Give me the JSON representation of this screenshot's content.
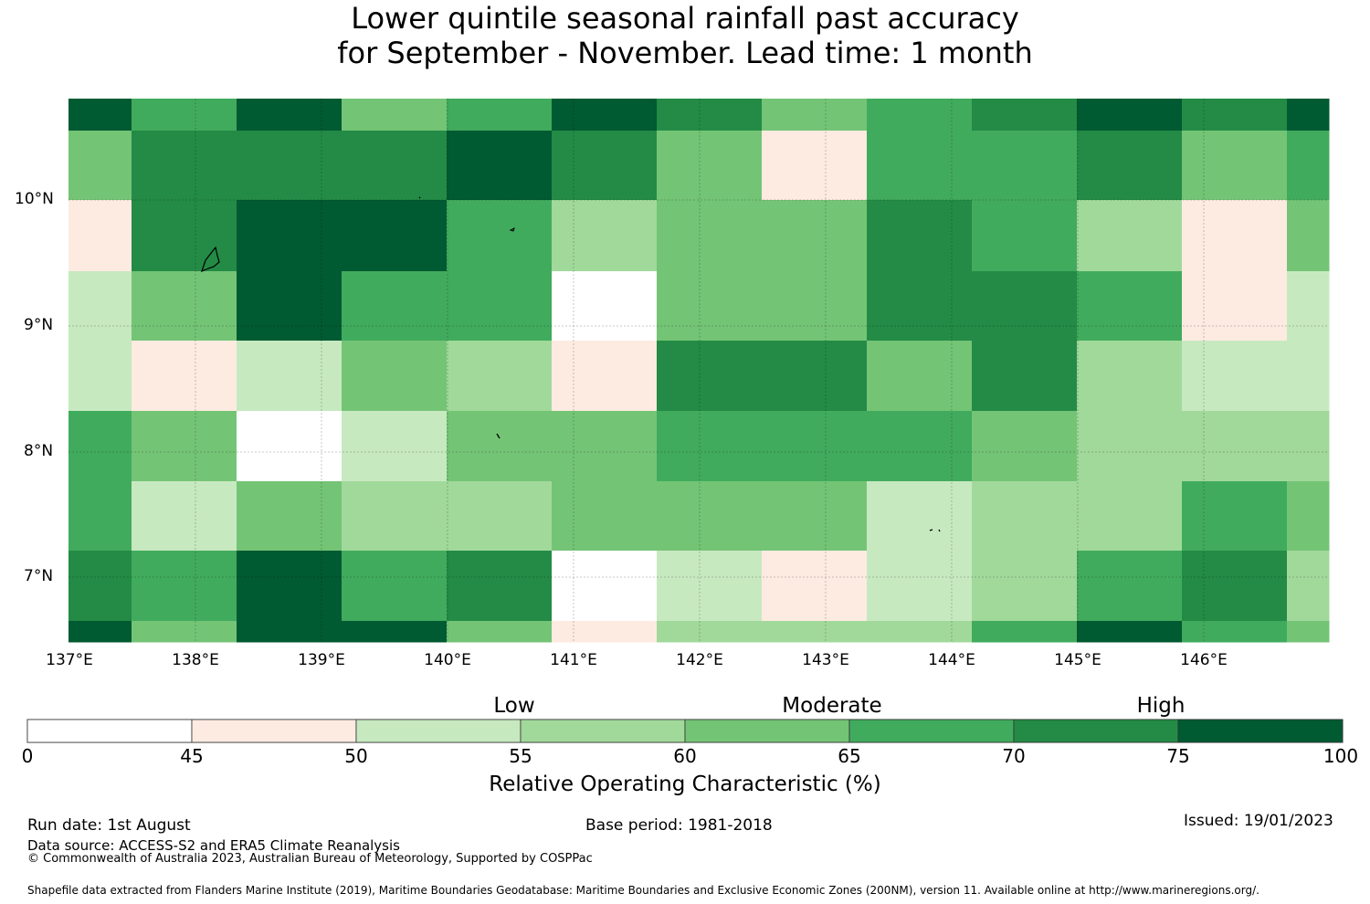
{
  "title": {
    "line1": "Lower quintile seasonal rainfall past accuracy",
    "line2": "for September - November. Lead time: 1 month"
  },
  "map": {
    "lat_labels": [
      "10°N",
      "9°N",
      "8°N",
      "7°N"
    ],
    "lon_labels": [
      "137°E",
      "138°E",
      "139°E",
      "140°E",
      "141°E",
      "142°E",
      "143°E",
      "144°E",
      "145°E",
      "146°E"
    ],
    "grid_rows_roc_class": [
      [
        7,
        5,
        7,
        4,
        5,
        7,
        6,
        4,
        5,
        6,
        7,
        6,
        7
      ],
      [
        4,
        6,
        6,
        6,
        7,
        6,
        4,
        1,
        5,
        5,
        6,
        4,
        5
      ],
      [
        1,
        6,
        7,
        7,
        5,
        3,
        4,
        4,
        6,
        5,
        3,
        1,
        4
      ],
      [
        2,
        4,
        7,
        5,
        5,
        0,
        4,
        4,
        6,
        6,
        5,
        1,
        2
      ],
      [
        2,
        1,
        2,
        4,
        3,
        1,
        6,
        6,
        4,
        6,
        3,
        2,
        2
      ],
      [
        5,
        4,
        0,
        2,
        4,
        4,
        5,
        5,
        5,
        4,
        3,
        3,
        3
      ],
      [
        5,
        2,
        4,
        3,
        3,
        4,
        4,
        4,
        2,
        3,
        3,
        5,
        4
      ],
      [
        6,
        5,
        7,
        5,
        6,
        0,
        2,
        1,
        2,
        3,
        5,
        6,
        3
      ],
      [
        7,
        4,
        7,
        7,
        4,
        1,
        3,
        3,
        3,
        5,
        7,
        5,
        4
      ]
    ]
  },
  "colorbar": {
    "colors": [
      "#ffffff",
      "#fdebe1",
      "#c7e9c0",
      "#a1d99b",
      "#74c476",
      "#41ab5d",
      "#238b45",
      "#005a32"
    ],
    "tick_labels": [
      "0",
      "45",
      "50",
      "55",
      "60",
      "65",
      "70",
      "75",
      "100"
    ],
    "category_labels": [
      "Low",
      "Moderate",
      "High"
    ],
    "axis_label": "Relative Operating Characteristic (%)"
  },
  "footer": {
    "run_date": "Run date: 1st August",
    "base_period": "Base period: 1981-2018",
    "issued": "Issued: 19/01/2023",
    "data_source": "Data source: ACCESS-S2 and ERA5 Climate Reanalysis",
    "copyright": "© Commonwealth of Australia 2023, Australian Bureau of Meteorology, Supported by COSPPac",
    "shapefile": "Shapefile data extracted from Flanders Marine Institute (2019), Maritime Boundaries Geodatabase: Maritime Boundaries and Exclusive Economic Zones (200NM), version 11. Available online at http://www.marineregions.org/."
  }
}
